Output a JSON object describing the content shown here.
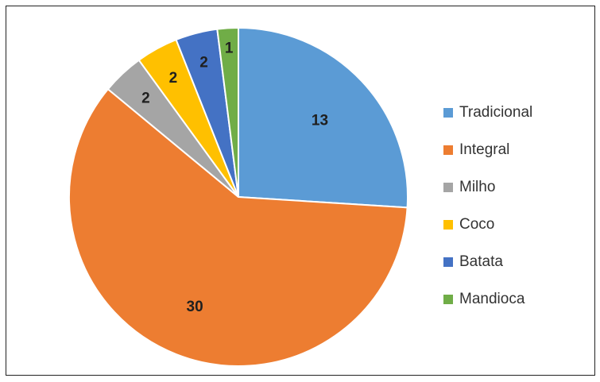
{
  "chart_data": {
    "type": "pie",
    "title": "",
    "categories": [
      "Tradicional",
      "Integral",
      "Milho",
      "Coco",
      "Batata",
      "Mandioca"
    ],
    "values": [
      13,
      30,
      2,
      2,
      2,
      1
    ],
    "labels": [
      "13",
      "30",
      "2",
      "2",
      "2",
      "1"
    ],
    "colors": [
      "#5b9bd5",
      "#ed7d31",
      "#a5a5a5",
      "#ffc000",
      "#4472c4",
      "#70ad47"
    ],
    "legend_position": "right",
    "start_angle_degrees": 0,
    "direction": "clockwise"
  }
}
